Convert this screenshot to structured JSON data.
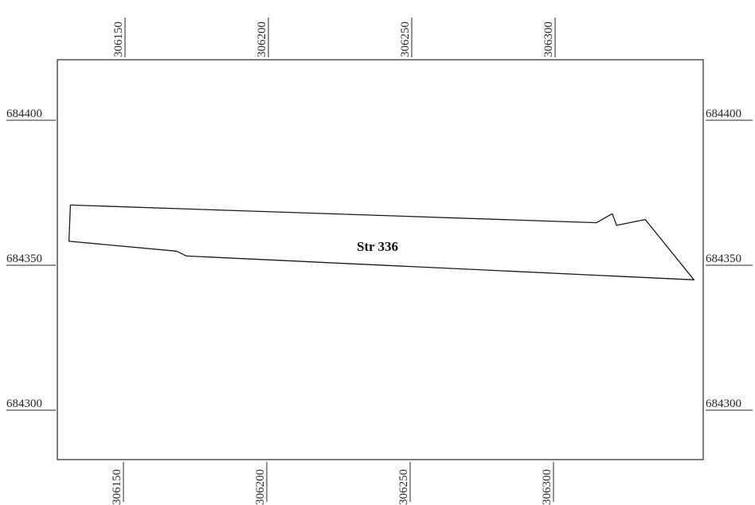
{
  "map": {
    "feature_label": "Str 336",
    "x_ticks_top": [
      "306150",
      "306200",
      "306250",
      "306300"
    ],
    "x_ticks_bottom": [
      "306150",
      "306200",
      "306250",
      "306300"
    ],
    "y_ticks_left": [
      "684400",
      "684350",
      "684300"
    ],
    "y_ticks_right": [
      "684400",
      "684350",
      "684300"
    ],
    "x_tick_values": [
      306150,
      306200,
      306250,
      306300
    ],
    "y_tick_values": [
      684400,
      684350,
      684300
    ],
    "outline_color": "#1a1a1a",
    "frame_color": "#2a2a2a",
    "feature_polygon": [
      [
        306131.5,
        684370.5
      ],
      [
        306315.0,
        684364.4
      ],
      [
        306320.5,
        684367.5
      ],
      [
        306322.0,
        684363.5
      ],
      [
        306332.0,
        684365.5
      ],
      [
        306349.0,
        684344.7
      ],
      [
        306172.0,
        684352.9
      ],
      [
        306168.5,
        684354.6
      ],
      [
        306131.0,
        684358.0
      ]
    ]
  }
}
